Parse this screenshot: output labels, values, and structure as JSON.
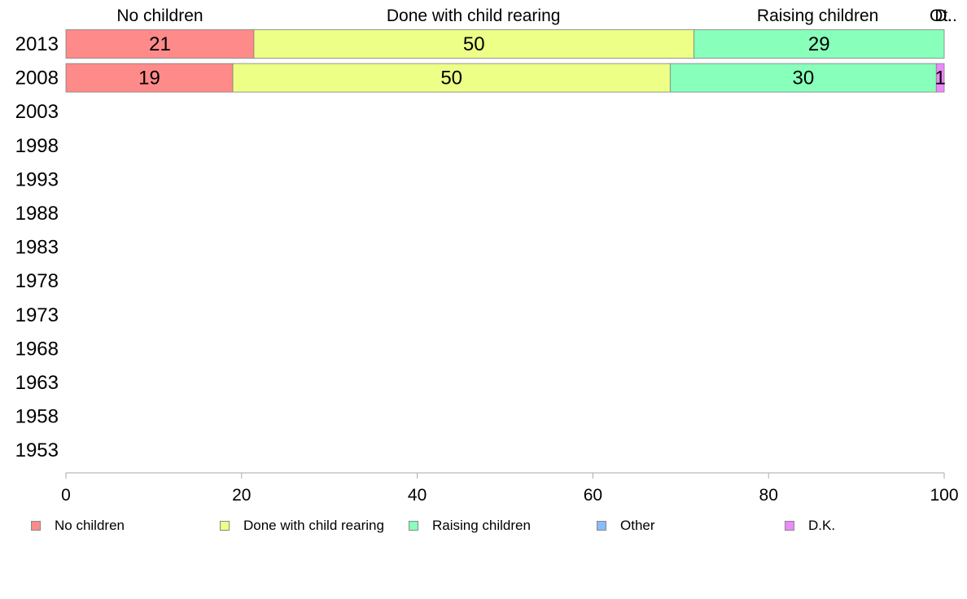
{
  "chart_data": {
    "type": "bar",
    "orientation": "horizontal",
    "stacked": true,
    "title": "",
    "xlabel": "",
    "ylabel": "",
    "xlim": [
      0,
      100
    ],
    "x_ticks": [
      "0",
      "20",
      "40",
      "60",
      "80",
      "100"
    ],
    "categories": [
      "2013",
      "2008",
      "2003",
      "1998",
      "1993",
      "1988",
      "1983",
      "1978",
      "1973",
      "1968",
      "1963",
      "1958",
      "1953"
    ],
    "series": [
      {
        "name": "No children",
        "color": "#ff8a8a",
        "values": [
          21.4,
          19.0,
          null,
          null,
          null,
          null,
          null,
          null,
          null,
          null,
          null,
          null,
          null
        ],
        "labels": [
          "21",
          "19",
          "",
          "",
          "",
          "",
          "",
          "",
          "",
          "",
          "",
          "",
          ""
        ]
      },
      {
        "name": "Done with child rearing",
        "color": "#eeff88",
        "values": [
          50.1,
          49.8,
          null,
          null,
          null,
          null,
          null,
          null,
          null,
          null,
          null,
          null,
          null
        ],
        "labels": [
          "50",
          "50",
          "",
          "",
          "",
          "",
          "",
          "",
          "",
          "",
          "",
          "",
          ""
        ]
      },
      {
        "name": "Raising children",
        "color": "#88ffbb",
        "values": [
          28.5,
          30.3,
          null,
          null,
          null,
          null,
          null,
          null,
          null,
          null,
          null,
          null,
          null
        ],
        "labels": [
          "29",
          "30",
          "",
          "",
          "",
          "",
          "",
          "",
          "",
          "",
          "",
          "",
          ""
        ]
      },
      {
        "name": "Other",
        "color": "#88bbff",
        "values": [
          0,
          0,
          null,
          null,
          null,
          null,
          null,
          null,
          null,
          null,
          null,
          null,
          null
        ],
        "labels": [
          "",
          "",
          "",
          "",
          "",
          "",
          "",
          "",
          "",
          "",
          "",
          "",
          ""
        ]
      },
      {
        "name": "D.K.",
        "color": "#ee88ff",
        "values": [
          0,
          0.9,
          null,
          null,
          null,
          null,
          null,
          null,
          null,
          null,
          null,
          null,
          null
        ],
        "labels": [
          "",
          "1",
          "",
          "",
          "",
          "",
          "",
          "",
          "",
          "",
          "",
          "",
          ""
        ]
      }
    ],
    "top_labels": [
      {
        "text": "No children",
        "at": 10.7
      },
      {
        "text": "Done with child rearing",
        "at": 46.4
      },
      {
        "text": "Raising children",
        "at": 85.6
      },
      {
        "text": "D.",
        "at": 99.9
      },
      {
        "text": "Ot..",
        "at": 99.9
      }
    ],
    "grid": false,
    "legend_position": "bottom"
  },
  "legend": {
    "items": [
      {
        "label": "No children",
        "color": "#ff8a8a"
      },
      {
        "label": "Done with child rearing",
        "color": "#eeff88"
      },
      {
        "label": "Raising children",
        "color": "#88ffbb"
      },
      {
        "label": "Other",
        "color": "#88bbff"
      },
      {
        "label": "D.K.",
        "color": "#ee88ff"
      }
    ]
  }
}
